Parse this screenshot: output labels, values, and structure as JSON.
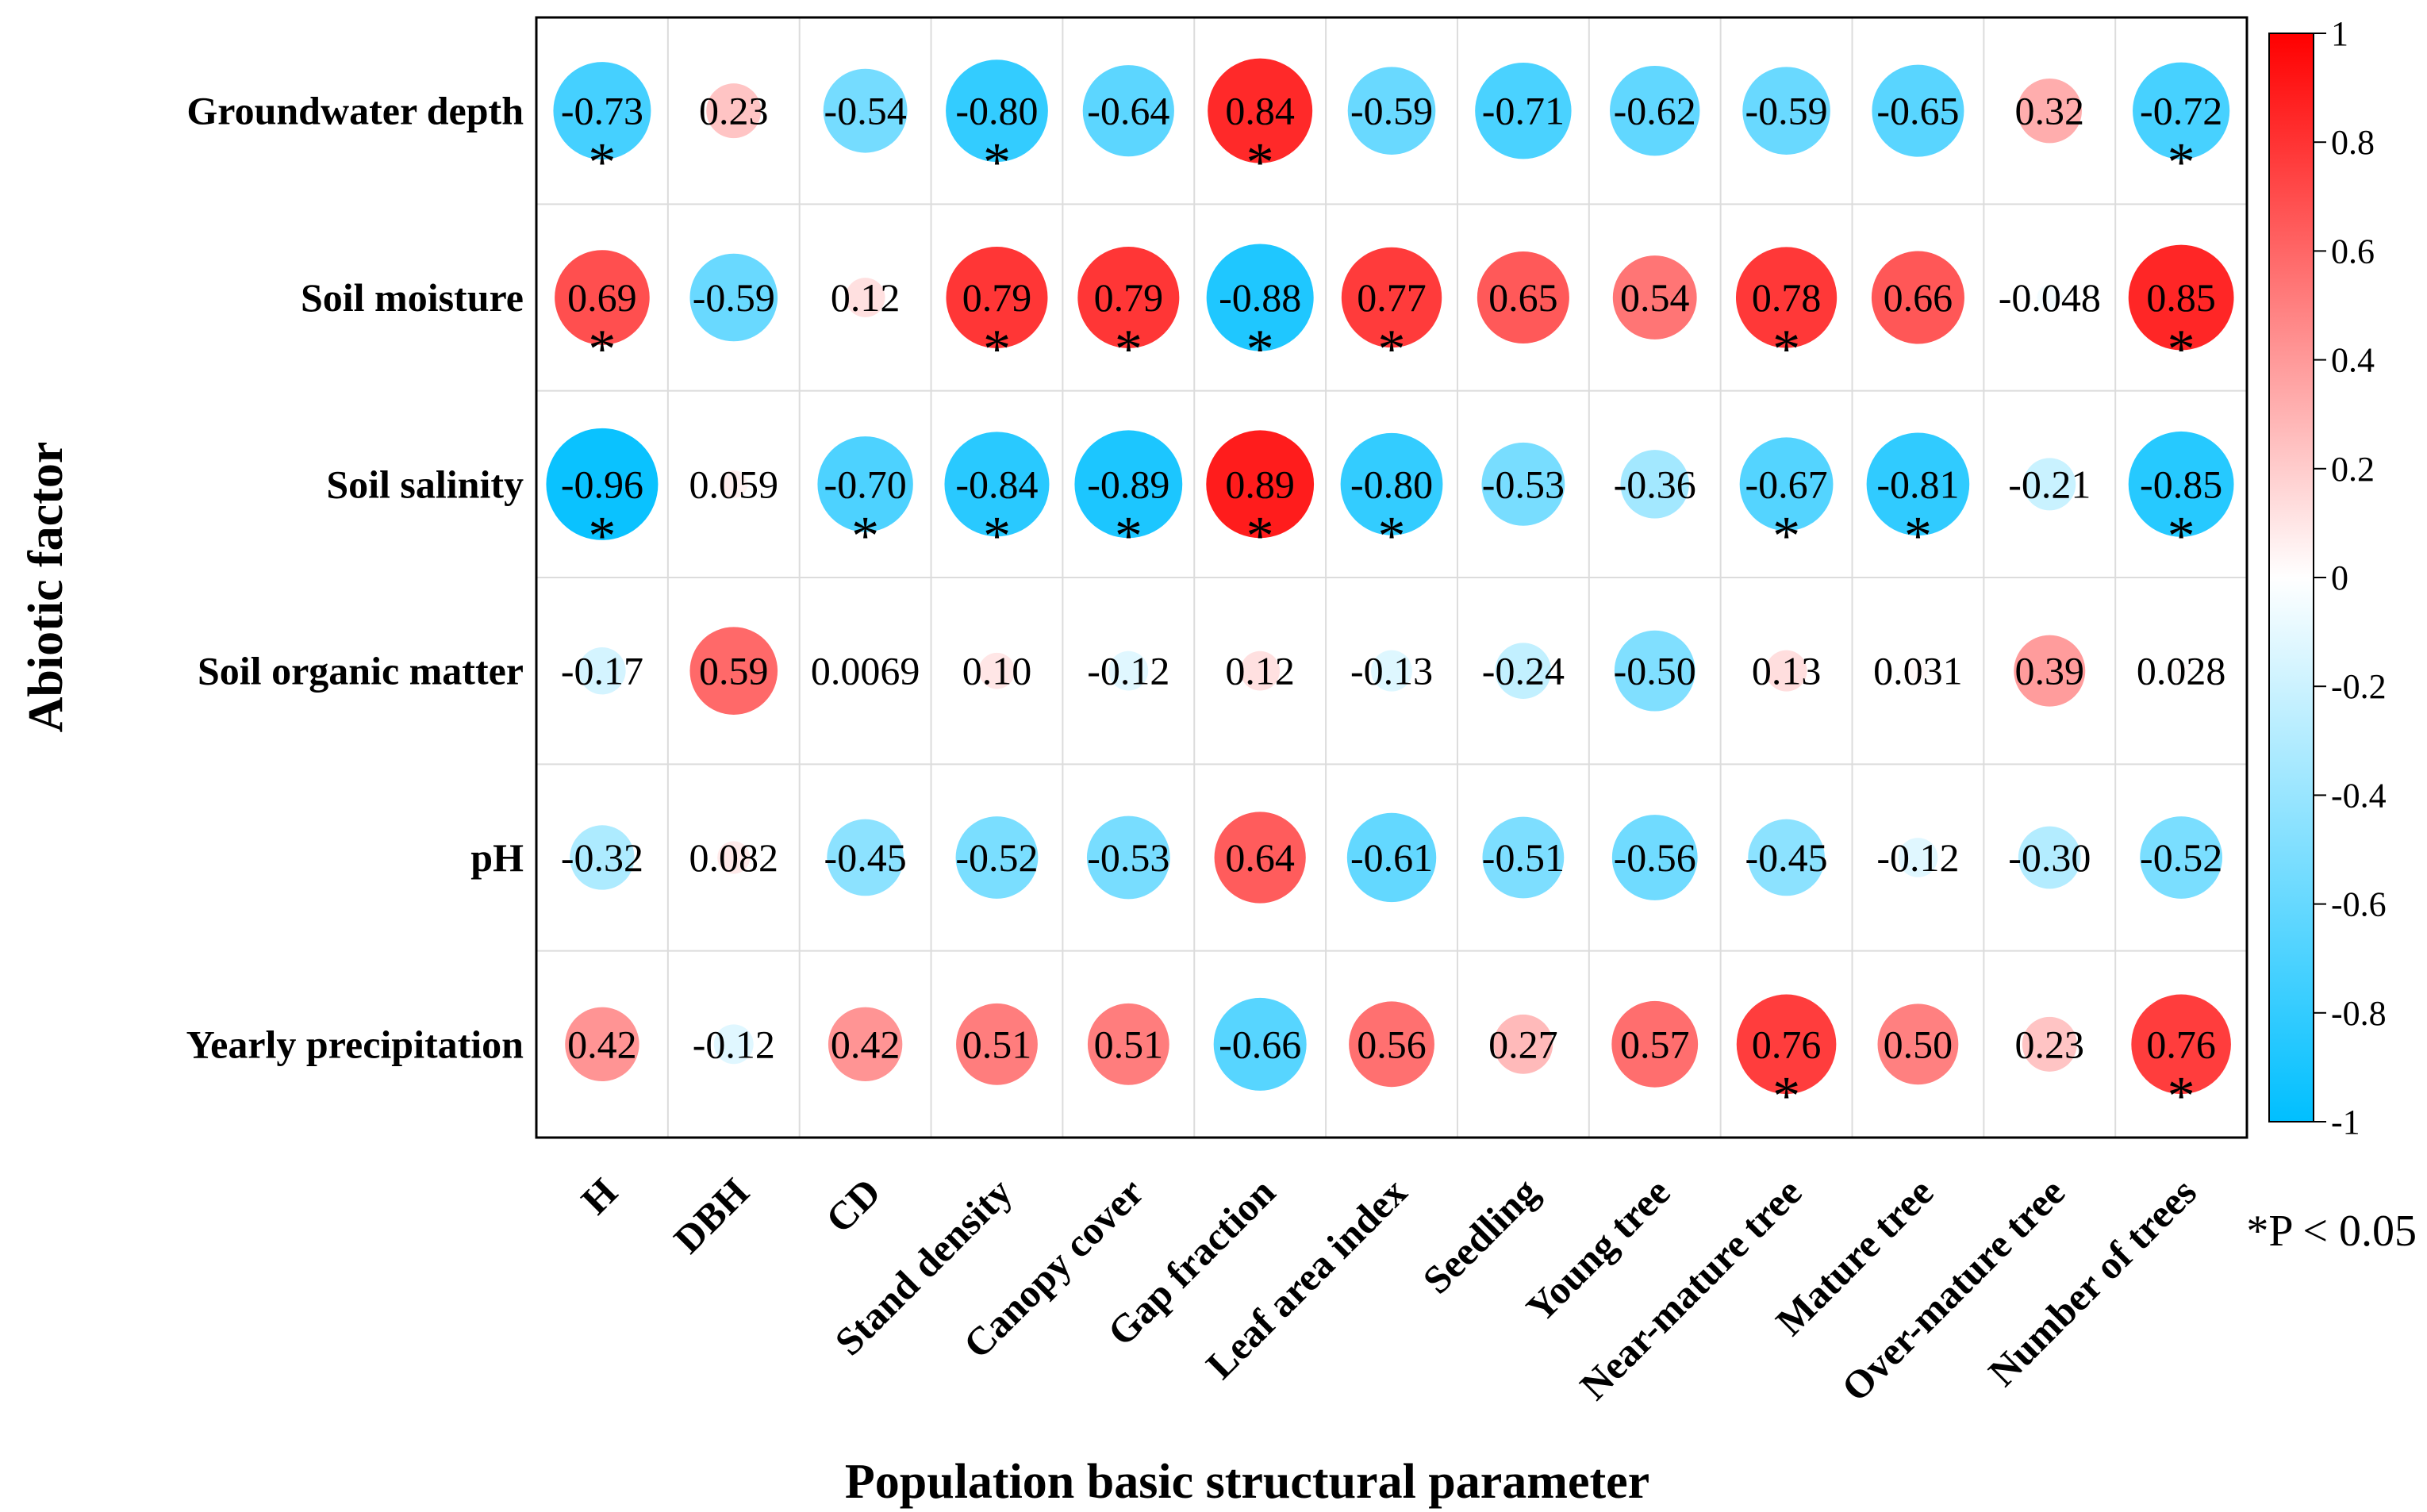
{
  "chart_data": {
    "type": "heatmap",
    "subtype": "correlation-circle",
    "xlabel": "Population basic structural parameter",
    "ylabel": "Abiotic factor",
    "rows": [
      "Groundwater depth",
      "Soil moisture",
      "Soil salinity",
      "Soil organic matter",
      "pH",
      "Yearly precipitation"
    ],
    "columns": [
      "H",
      "DBH",
      "CD",
      "Stand density",
      "Canopy cover",
      "Gap fraction",
      "Leaf area index",
      "Seedling",
      "Young tree",
      "Near-mature tree",
      "Mature tree",
      "Over-mature tree",
      "Number of trees"
    ],
    "values": [
      [
        "-0.73",
        "0.23",
        "-0.54",
        "-0.80",
        "-0.64",
        "0.84",
        "-0.59",
        "-0.71",
        "-0.62",
        "-0.59",
        "-0.65",
        "0.32",
        "-0.72"
      ],
      [
        "0.69",
        "-0.59",
        "0.12",
        "0.79",
        "0.79",
        "-0.88",
        "0.77",
        "0.65",
        "0.54",
        "0.78",
        "0.66",
        "-0.048",
        "0.85"
      ],
      [
        "-0.96",
        "0.059",
        "-0.70",
        "-0.84",
        "-0.89",
        "0.89",
        "-0.80",
        "-0.53",
        "-0.36",
        "-0.67",
        "-0.81",
        "-0.21",
        "-0.85"
      ],
      [
        "-0.17",
        "0.59",
        "0.0069",
        "0.10",
        "-0.12",
        "0.12",
        "-0.13",
        "-0.24",
        "-0.50",
        "0.13",
        "0.031",
        "0.39",
        "0.028"
      ],
      [
        "-0.32",
        "0.082",
        "-0.45",
        "-0.52",
        "-0.53",
        "0.64",
        "-0.61",
        "-0.51",
        "-0.56",
        "-0.45",
        "-0.12",
        "-0.30",
        "-0.52"
      ],
      [
        "0.42",
        "-0.12",
        "0.42",
        "0.51",
        "0.51",
        "-0.66",
        "0.56",
        "0.27",
        "0.57",
        "0.76",
        "0.50",
        "0.23",
        "0.76"
      ]
    ],
    "significant": [
      [
        true,
        false,
        false,
        true,
        false,
        true,
        false,
        false,
        false,
        false,
        false,
        false,
        true
      ],
      [
        true,
        false,
        false,
        true,
        true,
        true,
        true,
        false,
        false,
        true,
        false,
        false,
        true
      ],
      [
        true,
        false,
        true,
        true,
        true,
        true,
        true,
        false,
        false,
        true,
        true,
        false,
        true
      ],
      [
        false,
        false,
        false,
        false,
        false,
        false,
        false,
        false,
        false,
        false,
        false,
        false,
        false
      ],
      [
        false,
        false,
        false,
        false,
        false,
        false,
        false,
        false,
        false,
        false,
        false,
        false,
        false
      ],
      [
        false,
        false,
        false,
        false,
        false,
        false,
        false,
        false,
        false,
        true,
        false,
        false,
        true
      ]
    ],
    "significance_symbol": "*",
    "significance_note": "*P < 0.05",
    "colorbar": {
      "range": [
        -1,
        1
      ],
      "ticks": [
        "1",
        "0.8",
        "0.6",
        "0.4",
        "0.2",
        "0",
        "-0.2",
        "-0.4",
        "-0.6",
        "-0.8",
        "-1"
      ],
      "colors": {
        "negative": "#00bfff",
        "neutral": "#ffffff",
        "positive": "#ff0000"
      }
    }
  }
}
